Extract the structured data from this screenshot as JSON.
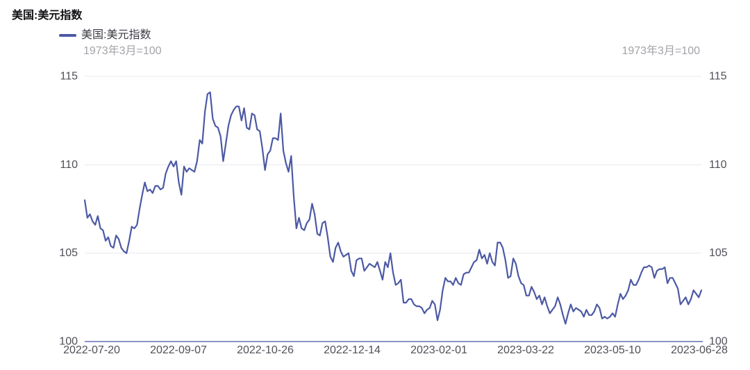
{
  "title": "美国:美元指数",
  "legend": {
    "label": "美国:美元指数"
  },
  "unit_note_left": "1973年3月=100",
  "unit_note_right": "1973年3月=100",
  "colors": {
    "series_line": "#4c59a4",
    "axis_line": "#8a92c6",
    "gridline": "#e7e7f0",
    "tick_label": "#4f4f58",
    "unit_note": "#a3a3a8",
    "legend_text": "#3b3b44",
    "title_text": "#111114",
    "background": "#ffffff"
  },
  "chart_data": {
    "type": "line",
    "title": "美国:美元指数",
    "series_name": "美国:美元指数",
    "unit_note": "1973年3月=100",
    "frequency": "daily",
    "x_range": [
      "2022-07-20",
      "2023-06-28"
    ],
    "x_tick_labels": [
      "2022-07-20",
      "2022-09-07",
      "2022-10-26",
      "2022-12-14",
      "2023-02-01",
      "2023-03-22",
      "2023-05-10",
      "2023-06-28"
    ],
    "y_ticks": [
      100,
      105,
      110,
      115
    ],
    "ylim": [
      100,
      115
    ],
    "grid": "horizontal-only",
    "legend_position": "top-left",
    "axis_labels_both_sides": true,
    "values": [
      108.0,
      107.0,
      107.2,
      106.8,
      106.6,
      107.1,
      106.4,
      106.3,
      105.7,
      105.9,
      105.4,
      105.3,
      106.0,
      105.8,
      105.3,
      105.1,
      105.0,
      105.7,
      106.5,
      106.4,
      106.6,
      107.5,
      108.3,
      109.0,
      108.5,
      108.6,
      108.4,
      108.8,
      108.8,
      108.6,
      108.7,
      109.5,
      109.9,
      110.2,
      109.9,
      110.2,
      109.0,
      108.3,
      109.9,
      109.6,
      109.8,
      109.7,
      109.6,
      110.2,
      111.4,
      111.2,
      113.0,
      114.0,
      114.1,
      112.6,
      112.2,
      112.1,
      111.6,
      110.2,
      111.2,
      112.2,
      112.8,
      113.1,
      113.3,
      113.3,
      112.5,
      113.2,
      112.1,
      112.0,
      112.9,
      112.8,
      112.0,
      111.9,
      110.9,
      109.7,
      110.6,
      110.8,
      111.5,
      111.5,
      111.4,
      112.9,
      110.8,
      110.1,
      109.6,
      110.5,
      108.2,
      106.4,
      107.0,
      106.4,
      106.3,
      106.7,
      106.9,
      107.8,
      107.2,
      106.1,
      106.0,
      106.7,
      106.8,
      105.9,
      104.8,
      104.5,
      105.3,
      105.6,
      105.1,
      104.8,
      104.9,
      105.0,
      104.0,
      103.7,
      104.6,
      104.7,
      104.7,
      104.0,
      104.2,
      104.4,
      104.3,
      104.2,
      104.5,
      104.0,
      103.5,
      104.5,
      104.2,
      105.0,
      103.9,
      103.2,
      103.3,
      103.5,
      102.2,
      102.2,
      102.4,
      102.4,
      102.1,
      102.0,
      102.0,
      101.9,
      101.6,
      101.8,
      101.9,
      102.3,
      102.1,
      101.2,
      101.8,
      102.9,
      103.6,
      103.4,
      103.4,
      103.2,
      103.6,
      103.3,
      103.2,
      103.8,
      103.9,
      103.9,
      104.2,
      104.5,
      104.6,
      105.2,
      104.7,
      104.9,
      104.4,
      105.0,
      104.5,
      104.3,
      105.6,
      105.6,
      105.3,
      104.6,
      103.6,
      103.7,
      104.7,
      104.4,
      103.7,
      103.3,
      103.2,
      102.6,
      102.6,
      103.1,
      102.8,
      102.4,
      102.6,
      102.1,
      102.5,
      102.0,
      101.6,
      101.8,
      102.0,
      102.5,
      102.1,
      101.5,
      101.0,
      101.6,
      102.1,
      101.7,
      101.9,
      101.8,
      101.7,
      101.4,
      101.8,
      101.5,
      101.5,
      101.7,
      102.1,
      101.9,
      101.3,
      101.4,
      101.3,
      101.4,
      101.6,
      101.4,
      102.1,
      102.7,
      102.4,
      102.6,
      102.9,
      103.5,
      103.2,
      103.2,
      103.5,
      103.9,
      104.2,
      104.2,
      104.3,
      104.2,
      103.6,
      104.0,
      104.1,
      104.1,
      104.2,
      103.3,
      103.6,
      103.6,
      103.3,
      103.0,
      102.1,
      102.3,
      102.5,
      102.1,
      102.4,
      102.9,
      102.7,
      102.5,
      102.9
    ]
  }
}
